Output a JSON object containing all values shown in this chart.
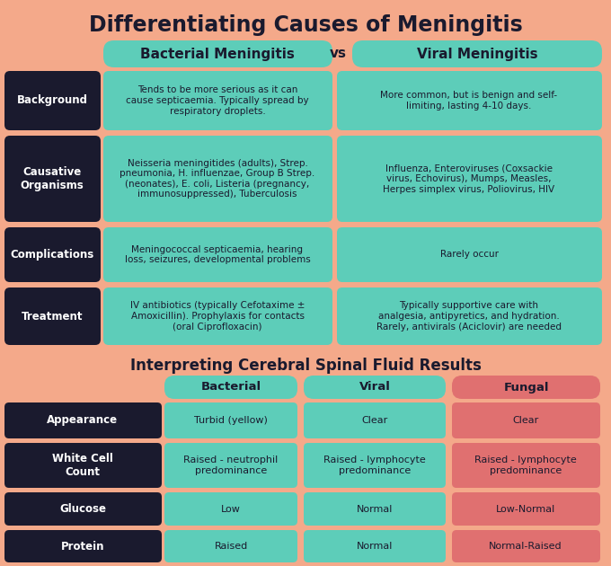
{
  "bg_color": "#f4a98a",
  "teal": "#5dcdb9",
  "red_fungal": "#e07070",
  "dark": "#1a1a2e",
  "white": "#ffffff",
  "title": "Differentiating Causes of Meningitis",
  "subtitle1": "Bacterial Meningitis",
  "subtitle_vs": "vs",
  "subtitle2": "Viral Meningitis",
  "row_labels": [
    "Background",
    "Causative\nOrganisms",
    "Complications",
    "Treatment"
  ],
  "bacterial_texts": [
    "Tends to be more serious as it can\ncause septicaemia. Typically spread by\nrespiratory droplets.",
    "Neisseria meningitides (adults), Strep.\npneumonia, H. influenzae, Group B Strep.\n(neonates), E. coli, Listeria (pregnancy,\nimmunosuppressed), Tuberculosis",
    "Meningococcal septicaemia, hearing\nloss, seizures, developmental problems",
    "IV antibiotics (typically Cefotaxime ±\nAmoxicillin). Prophylaxis for contacts\n(oral Ciprofloxacin)"
  ],
  "viral_texts": [
    "More common, but is benign and self-\nlimiting, lasting 4-10 days.",
    "Influenza, Enteroviruses (Coxsackie\nvirus, Echovirus), Mumps, Measles,\nHerpes simplex virus, Poliovirus, HIV",
    "Rarely occur",
    "Typically supportive care with\nanalgesia, antipyretics, and hydration.\nRarely, antivirals (Aciclovir) are needed"
  ],
  "csf_title": "Interpreting Cerebral Spinal Fluid Results",
  "csf_col_headers": [
    "Bacterial",
    "Viral",
    "Fungal"
  ],
  "csf_row_labels": [
    "Appearance",
    "White Cell\nCount",
    "Glucose",
    "Protein"
  ],
  "csf_bact": [
    "Turbid (yellow)",
    "Raised - neutrophil\npredominance",
    "Low",
    "Raised"
  ],
  "csf_viral": [
    "Clear",
    "Raised - lymphocyte\npredominance",
    "Normal",
    "Normal"
  ],
  "csf_fungal": [
    "Clear",
    "Raised - lymphocyte\npredominance",
    "Low-Normal",
    "Normal-Raised"
  ],
  "title_fontsize": 17,
  "header_fontsize": 11,
  "cell_fontsize": 7.5,
  "label_fontsize": 8.5,
  "csf_title_fontsize": 12,
  "csf_header_fontsize": 9.5,
  "csf_cell_fontsize": 8,
  "csf_label_fontsize": 8.5
}
